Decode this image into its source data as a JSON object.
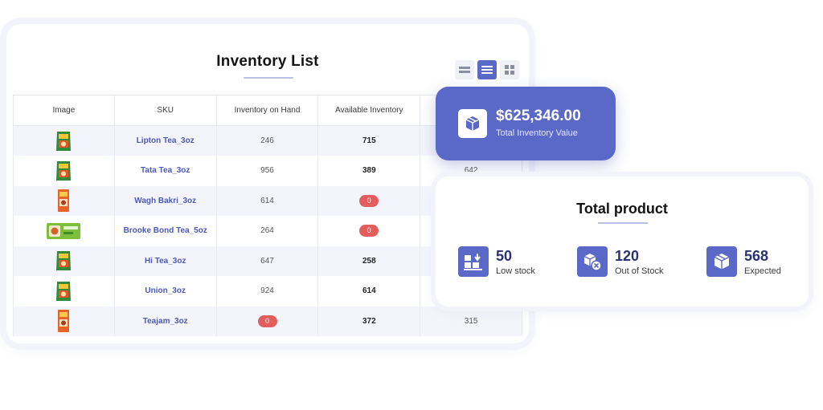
{
  "inventory": {
    "title": "Inventory List",
    "columns": [
      "Image",
      "SKU",
      "Inventory on Hand",
      "Available Inventory",
      ""
    ],
    "rows": [
      {
        "sku": "Lipton Tea_3oz",
        "on_hand": "246",
        "available": "715",
        "available_zero": false,
        "extra": "",
        "icon": "tea-pack-icon"
      },
      {
        "sku": "Tata Tea_3oz",
        "on_hand": "956",
        "available": "389",
        "available_zero": false,
        "extra": "642",
        "icon": "tea-pack-icon"
      },
      {
        "sku": "Wagh Bakri_3oz",
        "on_hand": "614",
        "available": "0",
        "available_zero": true,
        "extra": "",
        "icon": "tea-box-icon"
      },
      {
        "sku": "Brooke Bond Tea_5oz",
        "on_hand": "264",
        "available": "0",
        "available_zero": true,
        "extra": "",
        "icon": "tea-carton-icon"
      },
      {
        "sku": "Hi Tea_3oz",
        "on_hand": "647",
        "available": "258",
        "available_zero": false,
        "extra": "",
        "icon": "tea-pack-icon"
      },
      {
        "sku": "Union_3oz",
        "on_hand": "924",
        "available": "614",
        "available_zero": false,
        "extra": "",
        "icon": "tea-pack-icon"
      },
      {
        "sku": "Teajam_3oz",
        "on_hand": "0",
        "on_hand_zero": true,
        "available": "372",
        "available_zero": false,
        "extra": "315",
        "icon": "tea-box-icon"
      }
    ]
  },
  "value_card": {
    "amount": "$625,346.00",
    "label": "Total Inventory Value",
    "icon": "box-icon"
  },
  "total_product": {
    "title": "Total product",
    "stats": [
      {
        "value": "50",
        "label": "Low stock",
        "icon": "low-stock-icon"
      },
      {
        "value": "120",
        "label": "Out of Stock",
        "icon": "out-of-stock-icon"
      },
      {
        "value": "568",
        "label": "Expected",
        "icon": "expected-box-icon"
      }
    ]
  },
  "colors": {
    "accent": "#5a68c8",
    "sku_link": "#4c58b8",
    "zero_badge": "#e35d5d",
    "row_stripe": "#f4f5fc"
  }
}
